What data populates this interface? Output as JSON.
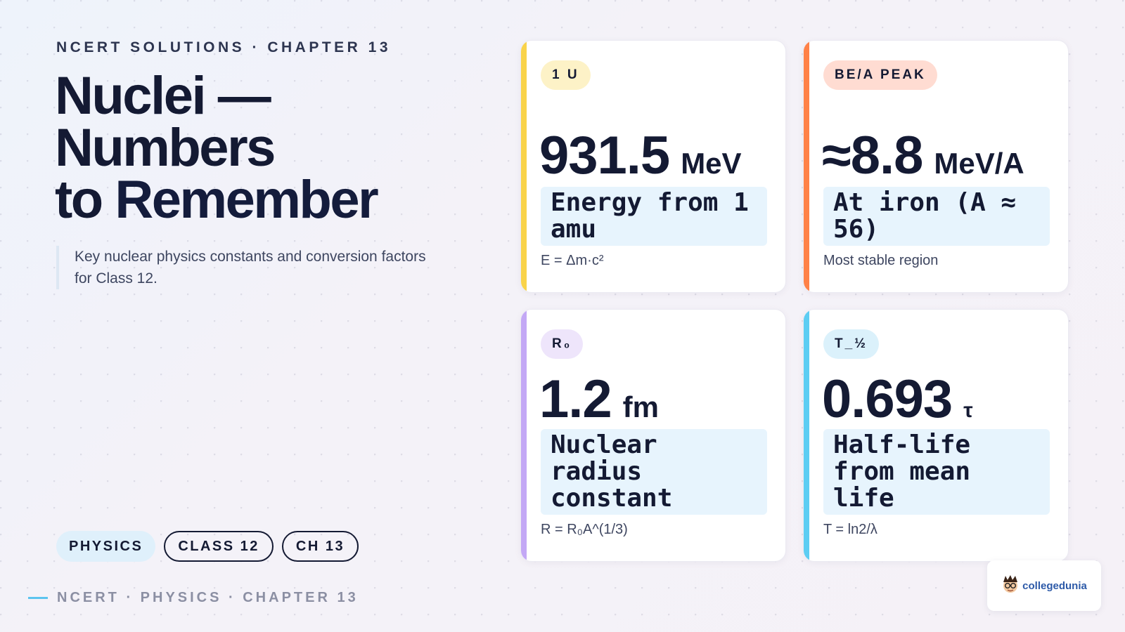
{
  "header": {
    "kicker": "NCERT SOLUTIONS · CHAPTER 13",
    "title_line1": "Nuclei —",
    "title_line2": "Numbers",
    "title_line3a": "to",
    "title_line3b": "Remember",
    "subtitle": "Key nuclear physics constants and conversion factors for Class 12."
  },
  "tags": [
    "PHYSICS",
    "CLASS 12",
    "CH 13"
  ],
  "footer": {
    "text": "NCERT · PHYSICS · CHAPTER 13"
  },
  "cards": [
    {
      "badge": "1 U",
      "value": "931.5",
      "unit": "MeV",
      "description": "Energy from 1 amu",
      "formula": "E = Δm·c²",
      "accent": "#f9d34a",
      "badge_bg": "#fdf2c7"
    },
    {
      "badge": "BE/A PEAK",
      "value": "≈8.8",
      "unit": "MeV/A",
      "description": "At iron (A ≈ 56)",
      "formula": "Most stable region",
      "accent": "#ff8147",
      "badge_bg": "#ffdcd2"
    },
    {
      "badge": "R₀",
      "value": "1.2",
      "unit": "fm",
      "description": "Nuclear radius constant",
      "formula": "R = R₀A^(1/3)",
      "accent": "#c3a8f5",
      "badge_bg": "#eee5fb"
    },
    {
      "badge": "T_½",
      "value": "0.693",
      "unit": "τ",
      "description": "Half-life from mean life",
      "formula": "T = ln2/λ",
      "accent": "#5ccdf3",
      "badge_bg": "#dbf1fb"
    }
  ],
  "logo": {
    "text": "collegedunia",
    "icon": "mascot-icon"
  }
}
